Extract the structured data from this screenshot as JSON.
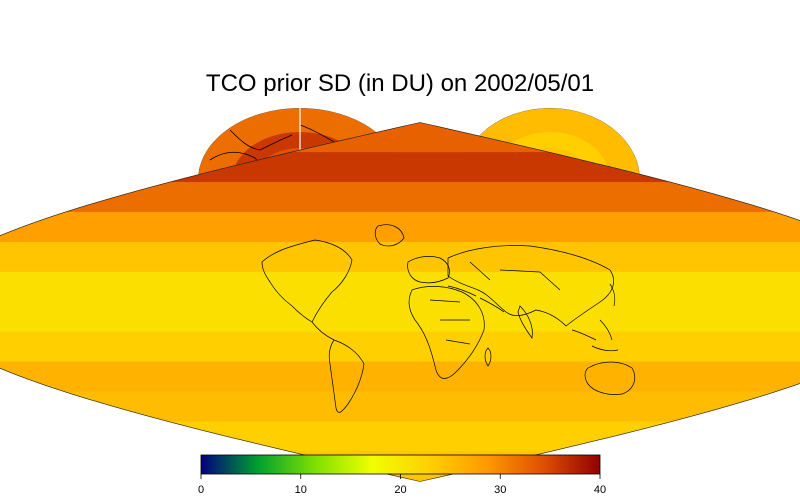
{
  "figure": {
    "title": "TCO prior SD (in DU) on 2002/05/01"
  },
  "chart_data": {
    "type": "heatmap",
    "title": "TCO prior SD (in DU) on 2002/05/01",
    "projection": "sinusoidal world map with north and south polar stereographic insets",
    "colorbar": {
      "min": 0,
      "max": 40,
      "ticks": [
        0,
        10,
        20,
        30,
        40
      ],
      "colormap": [
        "#00007f",
        "#00a030",
        "#7fe000",
        "#f0ff00",
        "#ffd000",
        "#ff9a00",
        "#e05000",
        "#900000"
      ]
    },
    "latitude_bands": [
      {
        "lat": [
          75,
          90
        ],
        "value": 33
      },
      {
        "lat": [
          60,
          75
        ],
        "value": 36
      },
      {
        "lat": [
          45,
          60
        ],
        "value": 32
      },
      {
        "lat": [
          30,
          45
        ],
        "value": 28
      },
      {
        "lat": [
          15,
          30
        ],
        "value": 24
      },
      {
        "lat": [
          -15,
          15
        ],
        "value": 21
      },
      {
        "lat": [
          -30,
          -15
        ],
        "value": 23
      },
      {
        "lat": [
          -45,
          -30
        ],
        "value": 26
      },
      {
        "lat": [
          -60,
          -45
        ],
        "value": 25
      },
      {
        "lat": [
          -75,
          -60
        ],
        "value": 23
      },
      {
        "lat": [
          -90,
          -75
        ],
        "value": 24
      }
    ],
    "north_polar_rings": [
      {
        "lat_from": 45,
        "value": 32
      },
      {
        "lat_from": 60,
        "value": 36
      },
      {
        "lat_from": 70,
        "value": 34
      },
      {
        "lat_from": 80,
        "value": 29
      },
      {
        "lat_from": 85,
        "value": 24
      }
    ],
    "south_polar_rings": [
      {
        "lat_from": -45,
        "value": 25
      },
      {
        "lat_from": -60,
        "value": 23
      },
      {
        "lat_from": -70,
        "value": 24
      },
      {
        "lat_from": -80,
        "value": 25
      },
      {
        "lat_from": -85,
        "value": 24
      }
    ]
  }
}
